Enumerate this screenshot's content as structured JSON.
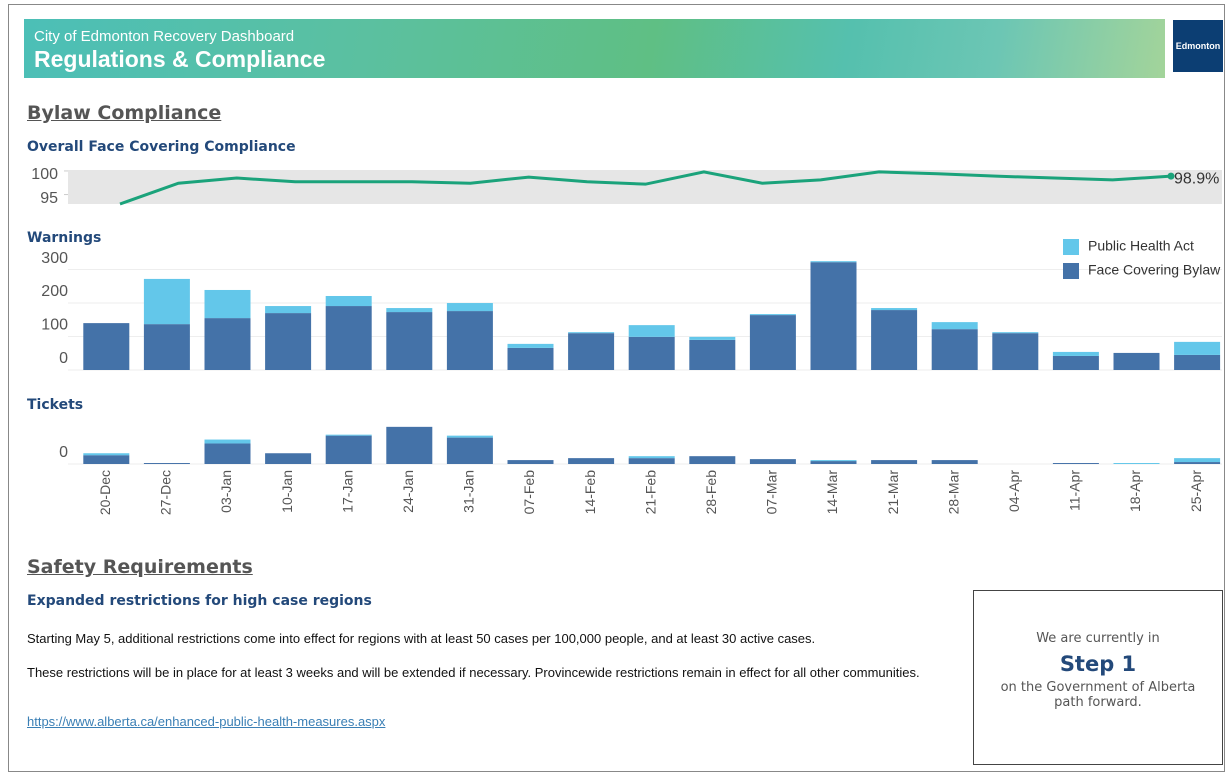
{
  "header": {
    "subtitle": "City of Edmonton Recovery Dashboard",
    "title": "Regulations & Compliance",
    "logo": "Edmonton"
  },
  "bylaw": {
    "heading": "Bylaw Compliance",
    "categories": [
      "20-Dec",
      "27-Dec",
      "03-Jan",
      "10-Jan",
      "17-Jan",
      "24-Jan",
      "31-Jan",
      "07-Feb",
      "14-Feb",
      "21-Feb",
      "28-Feb",
      "07-Mar",
      "14-Mar",
      "21-Mar",
      "28-Mar",
      "04-Apr",
      "11-Apr",
      "18-Apr",
      "25-Apr"
    ],
    "compliance": {
      "type": "line",
      "title": "Overall Face Covering Compliance",
      "color": "#1ba37b",
      "values": [
        93.0,
        97.4,
        98.5,
        97.7,
        97.7,
        97.7,
        97.4,
        98.7,
        97.7,
        97.2,
        99.8,
        97.4,
        98.1,
        99.8,
        99.4,
        98.9,
        98.5,
        98.1,
        98.9
      ],
      "value_labels": {
        "18": "98.9%"
      },
      "ylim": [
        93,
        100.2
      ],
      "yticks": [
        100,
        95
      ]
    },
    "warnings": {
      "type": "bar",
      "stacked": true,
      "title": "Warnings",
      "legend": "top-right",
      "series": [
        {
          "name": "Face Covering Bylaw",
          "color": "#4472a8",
          "values": [
            140,
            137,
            155,
            170,
            191,
            173,
            176,
            66,
            110,
            99,
            90,
            164,
            322,
            179,
            122,
            110,
            42,
            51,
            45
          ]
        },
        {
          "name": "Public Health Act",
          "color": "#63c7ea",
          "values": [
            0,
            135,
            84,
            21,
            30,
            12,
            24,
            12,
            3,
            35,
            9,
            3,
            3,
            6,
            21,
            3,
            12,
            0,
            39
          ]
        }
      ],
      "ylim": [
        0,
        330
      ],
      "yticks": [
        0,
        100,
        200,
        300
      ]
    },
    "tickets": {
      "type": "bar",
      "stacked": true,
      "title": "Tickets",
      "series": [
        {
          "name": "Face Covering Bylaw",
          "color": "#4472a8",
          "values": [
            9,
            1,
            21,
            11,
            29,
            38,
            27,
            4,
            6,
            6,
            8,
            5,
            3,
            4,
            4,
            0,
            1,
            0,
            2
          ]
        },
        {
          "name": "Public Health Act",
          "color": "#63c7ea",
          "values": [
            2,
            0,
            4,
            0,
            1,
            0,
            2,
            0,
            0,
            2,
            0,
            0,
            1,
            0,
            0,
            0,
            0,
            1,
            4
          ]
        }
      ],
      "ylim": [
        0,
        45
      ],
      "yticks": [
        0
      ]
    }
  },
  "safety": {
    "heading": "Safety Requirements",
    "subheading": "Expanded restrictions for high case regions",
    "paragraphs": [
      "Starting May 5, additional restrictions come into effect for regions with at least 50 cases per 100,000 people, and at least 30 active cases.",
      "These restrictions will be in place for at least 3 weeks and will be extended if necessary. Provincewide restrictions remain in effect for all other communities."
    ],
    "link": "https://www.alberta.ca/enhanced-public-health-measures.aspx",
    "step_box": {
      "pre": "We are currently in",
      "step": "Step 1",
      "post": "on the Government of Alberta path forward."
    }
  }
}
